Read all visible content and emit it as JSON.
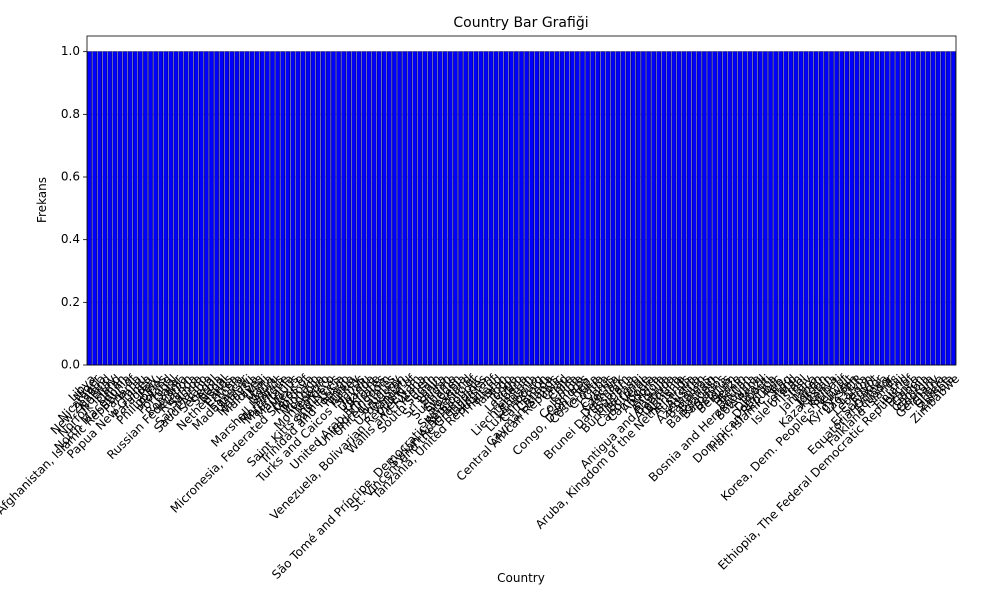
{
  "chart_data": {
    "type": "bar",
    "title": "Country Bar Grafiği",
    "xlabel": "Country",
    "ylabel": "Frekans",
    "categories": [
      "Libya",
      "Niger",
      "Nicaragua",
      "New Zealand",
      "Norway",
      "Norfolk Island",
      "Oman",
      "North Macedonia",
      "Afghanistan, Islamic Republic of",
      "Panama",
      "Palau",
      "Papua New Guinea",
      "Paraguay",
      "Peru",
      "Philippines",
      "Poland",
      "Portugal",
      "Qatar",
      "Romania",
      "Russian Federation",
      "Rwanda",
      "Samoa",
      "San Marino",
      "Saudi Arabia",
      "Senegal",
      "Serbia",
      "Nepal",
      "Netherlands",
      "Eritrea",
      "Estonia",
      "Madagascar",
      "Malawi",
      "Malaysia",
      "Maldives",
      "Mali",
      "Malta",
      "Nauru",
      "Marshall Islands",
      "Martinique",
      "Mauritania",
      "Mauritius",
      "Mexico",
      "Micronesia, Federated States of",
      "Moldova",
      "Monaco",
      "Mongolia",
      "Montenegro",
      "Morocco",
      "Saint Kitts and Nevis",
      "Saint Lucia",
      "Trinidad and Tobago",
      "Tunisia",
      "Turkey",
      "Turks and Caicos Islands",
      "Tuvalu",
      "Uganda",
      "Ukraine",
      "United Arab Emirates",
      "United Kingdom",
      "United States",
      "Uruguay",
      "Uzbekistan",
      "Vanuatu",
      "Venezuela, Bolivarian Republic of",
      "Viet Nam",
      "Wallis and Futuna",
      "Yemen",
      "South Sudan",
      "Spain",
      "Sri Lanka",
      "Sudan",
      "Suriname",
      "Sweden",
      "Slovenia",
      "Switzerland",
      "São Tomé and Príncipe, Democratic Republic of",
      "Syrian Arab Republic",
      "St. Vincent and the Grenadines",
      "Tajikistan",
      "Tanzania, United Republic of",
      "Thailand",
      "Taiwan",
      "Togo",
      "Tonga",
      "Lesotho",
      "Liberia",
      "Liechtenstein",
      "Lithuania",
      "Luxembourg",
      "Cameroon",
      "Canada",
      "Cayman Islands",
      "Central African Republic",
      "Chad",
      "Chile",
      "China",
      "Colombia",
      "Comoros",
      "Congo, Dem. Rep.",
      "Costa Rica",
      "Croatia",
      "Cuba",
      "Cyprus",
      "Czechia",
      "Denmark",
      "Brunei Darussalam",
      "Bulgaria",
      "Burkina Faso",
      "Burundi",
      "Cabo Verde",
      "Cambodia",
      "Andorra",
      "Angola",
      "Anguilla",
      "Antigua and Barbuda",
      "Argentina",
      "Armenia",
      "Aruba, Kingdom of the Netherlands",
      "Australia",
      "Austria",
      "Azerbaijan",
      "Bahamas",
      "Bahrain",
      "Bangladesh",
      "Barbados",
      "Belarus",
      "Belgium",
      "Belize",
      "Benin",
      "Bhutan",
      "Bosnia and Herzegovina",
      "Botswana",
      "Brazil",
      "Djibouti",
      "Dominica",
      "Dominican Republic",
      "Iran, Islamic Rep.",
      "Iraq",
      "Ireland",
      "Isle of Man",
      "Israel",
      "Italy",
      "Jamaica",
      "Japan",
      "Jordan",
      "Kazakhstan",
      "Kenya",
      "Kiribati",
      "Korea, Dem. People's Rep. of",
      "Kuwait",
      "Kyrgyzstan",
      "Lao PDR",
      "Latvia",
      "Lebanon",
      "Egypt",
      "El Salvador",
      "Equatorial Guinea",
      "Ecuador",
      "Falkland Islands",
      "Fiji",
      "Finland",
      "Ethiopia, The Federal Democratic Republic of",
      "France",
      "Gabon",
      "Gambia",
      "Georgia",
      "Germany",
      "Ghana",
      "Greece",
      "Zambia",
      "Zimbabwe"
    ],
    "values": [
      1,
      1,
      1,
      1,
      1,
      1,
      1,
      1,
      1,
      1,
      1,
      1,
      1,
      1,
      1,
      1,
      1,
      1,
      1,
      1,
      1,
      1,
      1,
      1,
      1,
      1,
      1,
      1,
      1,
      1,
      1,
      1,
      1,
      1,
      1,
      1,
      1,
      1,
      1,
      1,
      1,
      1,
      1,
      1,
      1,
      1,
      1,
      1,
      1,
      1,
      1,
      1,
      1,
      1,
      1,
      1,
      1,
      1,
      1,
      1,
      1,
      1,
      1,
      1,
      1,
      1,
      1,
      1,
      1,
      1,
      1,
      1,
      1,
      1,
      1,
      1,
      1,
      1,
      1,
      1,
      1,
      1,
      1,
      1,
      1,
      1,
      1,
      1,
      1,
      1,
      1,
      1,
      1,
      1,
      1,
      1,
      1,
      1,
      1,
      1,
      1,
      1,
      1,
      1,
      1,
      1,
      1,
      1,
      1,
      1,
      1,
      1,
      1,
      1,
      1,
      1,
      1,
      1,
      1,
      1,
      1,
      1,
      1,
      1,
      1,
      1,
      1,
      1,
      1,
      1,
      1,
      1,
      1,
      1,
      1,
      1,
      1,
      1,
      1,
      1,
      1,
      1,
      1,
      1,
      1,
      1,
      1,
      1,
      1,
      1,
      1,
      1,
      1,
      1,
      1,
      1,
      1,
      1,
      1,
      1,
      1,
      1,
      1,
      1,
      1,
      1,
      1,
      1,
      1,
      1,
      1
    ],
    "color": "#0000ff",
    "edgecolor": "#000080",
    "ylim": [
      0,
      1.05
    ],
    "yticks": [
      {
        "value": 0,
        "label": "0.0"
      },
      {
        "value": 0.2,
        "label": "0.2"
      },
      {
        "value": 0.4,
        "label": "0.4"
      },
      {
        "value": 0.6,
        "label": "0.6"
      },
      {
        "value": 0.8,
        "label": "0.8"
      },
      {
        "value": 1,
        "label": "1.0"
      }
    ],
    "grid": true
  }
}
